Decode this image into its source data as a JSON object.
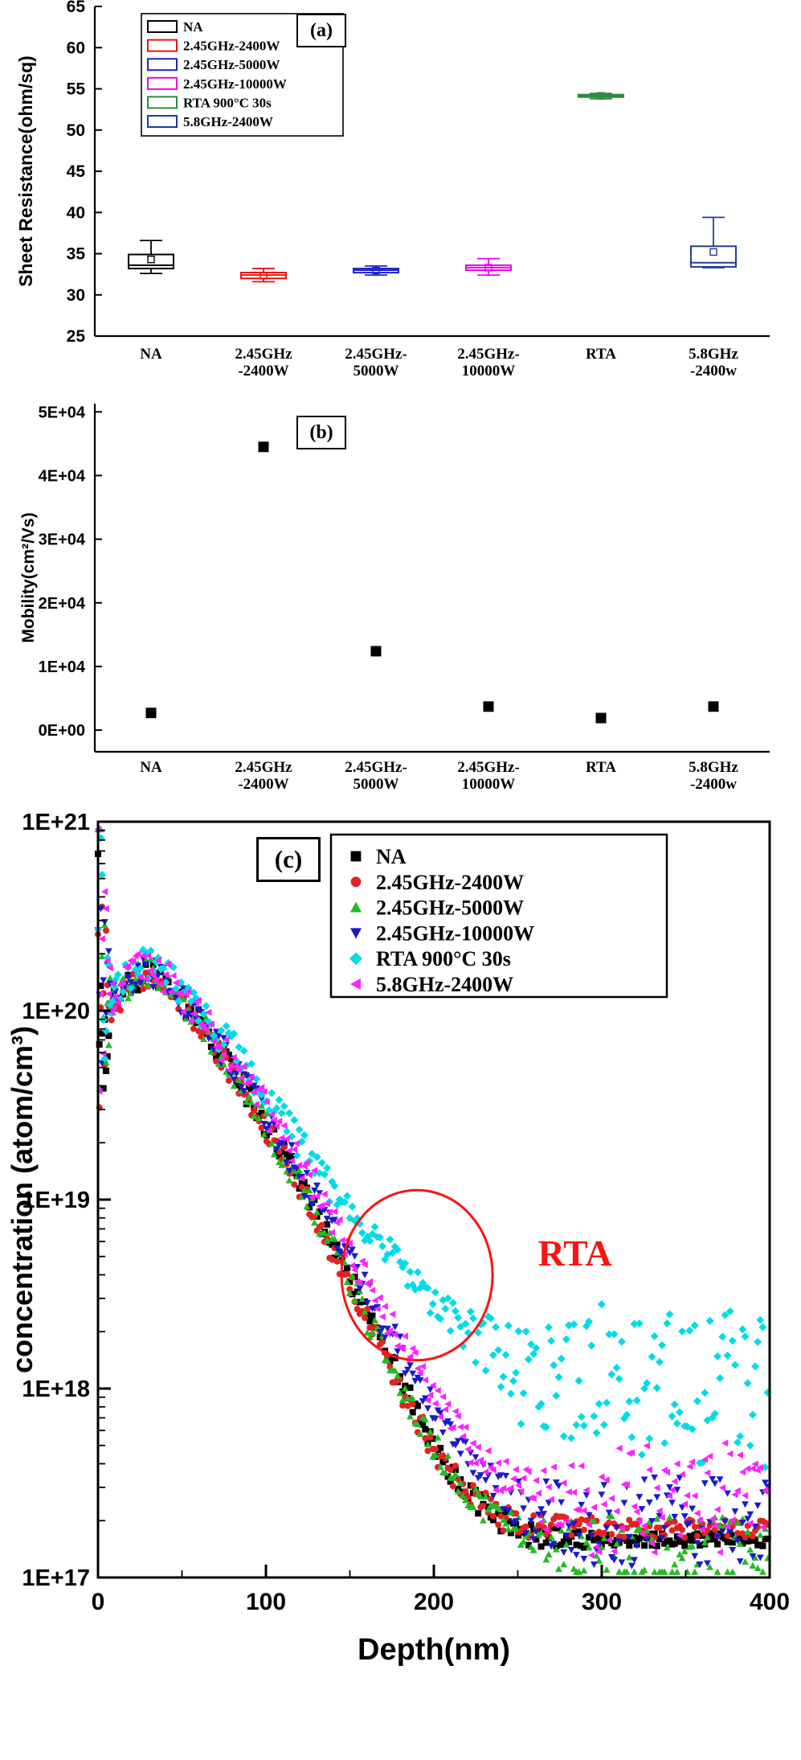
{
  "figure": {
    "background": "#ffffff",
    "panels": {
      "a": {
        "label": "(a)"
      },
      "b": {
        "label": "(b)"
      },
      "c": {
        "label": "(c)"
      }
    }
  },
  "chart_data": [
    {
      "id": "a",
      "type": "box",
      "panel_label": "(a)",
      "ylabel": "Sheet Resistance(ohm/sq)",
      "ylim": [
        25,
        65
      ],
      "yticks": [
        25,
        30,
        35,
        40,
        45,
        50,
        55,
        60,
        65
      ],
      "categories": [
        [
          "NA"
        ],
        [
          "2.45GHz",
          "-2400W"
        ],
        [
          "2.45GHz-",
          "5000W"
        ],
        [
          "2.45GHz-",
          "10000W"
        ],
        [
          "RTA"
        ],
        [
          "5.8GHz",
          "-2400w"
        ]
      ],
      "legend": [
        {
          "label": "NA",
          "color": "#000000"
        },
        {
          "label": "2.45GHz-2400W",
          "color": "#ee1111"
        },
        {
          "label": "2.45GHz-5000W",
          "color": "#2222cc"
        },
        {
          "label": "2.45GHz-10000W",
          "color": "#ee00ee"
        },
        {
          "label": "RTA  900°C 30s",
          "color": "#2e8b3a"
        },
        {
          "label": "5.8GHz-2400W",
          "color": "#1f3d99"
        }
      ],
      "boxes": [
        {
          "category": "NA",
          "color": "#000000",
          "low": 32.6,
          "q1": 33.2,
          "median": 33.6,
          "mean": 34.3,
          "q3": 34.9,
          "high": 36.6
        },
        {
          "category": "2.45GHz-2400W",
          "color": "#ee1111",
          "low": 31.6,
          "q1": 32.0,
          "median": 32.4,
          "mean": 32.35,
          "q3": 32.7,
          "high": 33.2
        },
        {
          "category": "2.45GHz-5000W",
          "color": "#2222cc",
          "low": 32.4,
          "q1": 32.7,
          "median": 33.0,
          "mean": 32.95,
          "q3": 33.2,
          "high": 33.5
        },
        {
          "category": "2.45GHz-10000W",
          "color": "#ee00ee",
          "low": 32.4,
          "q1": 33.0,
          "median": 33.3,
          "mean": 33.3,
          "q3": 33.6,
          "high": 34.4
        },
        {
          "category": "RTA",
          "color": "#2e8b3a",
          "low": 53.8,
          "q1": 54.0,
          "median": 54.15,
          "mean": 54.15,
          "q3": 54.3,
          "high": 54.45
        },
        {
          "category": "5.8GHz-2400w",
          "color": "#1f3d99",
          "low": 33.3,
          "q1": 33.4,
          "median": 33.9,
          "mean": 35.2,
          "q3": 35.9,
          "high": 39.4
        }
      ]
    },
    {
      "id": "b",
      "type": "scatter",
      "panel_label": "(b)",
      "ylabel": "Mobility(cm²/Vs)",
      "ylim": [
        -3400,
        51300
      ],
      "yticks": [
        {
          "value": 0,
          "label": "0E+00"
        },
        {
          "value": 10000,
          "label": "1E+04"
        },
        {
          "value": 20000,
          "label": "2E+04"
        },
        {
          "value": 30000,
          "label": "3E+04"
        },
        {
          "value": 40000,
          "label": "4E+04"
        },
        {
          "value": 50000,
          "label": "5E+04"
        }
      ],
      "categories": [
        [
          "NA"
        ],
        [
          "2.45GHz",
          "-2400W"
        ],
        [
          "2.45GHz-",
          "5000W"
        ],
        [
          "2.45GHz-",
          "10000W"
        ],
        [
          "RTA"
        ],
        [
          "5.8GHz",
          "-2400w"
        ]
      ],
      "values": [
        2700,
        44500,
        12400,
        3700,
        1900,
        3700
      ],
      "marker": {
        "shape": "square",
        "color": "#000000"
      }
    },
    {
      "id": "c",
      "type": "scatter-profile",
      "panel_label": "(c)",
      "xlabel": "Depth(nm)",
      "ylabel": "concentration (atom/cm³)",
      "xlim": [
        0,
        400
      ],
      "xticks": [
        0,
        100,
        200,
        300,
        400
      ],
      "xminor": [
        50,
        150,
        250,
        350
      ],
      "yscale": "log",
      "ylog_lim": [
        17,
        21
      ],
      "yticks": [
        {
          "exp": 17,
          "label": "1E+17"
        },
        {
          "exp": 18,
          "label": "1E+18"
        },
        {
          "exp": 19,
          "label": "1E+19"
        },
        {
          "exp": 20,
          "label": "1E+20"
        },
        {
          "exp": 21,
          "label": "1E+21"
        }
      ],
      "annotation": {
        "text": "RTA",
        "color": "#ff1111",
        "ellipse": {
          "cx_nm": 190,
          "cy_log": 18.6,
          "rx_nm": 45,
          "ry_dec": 0.45
        },
        "text_pos": {
          "x_nm": 262,
          "y_log": 18.72
        }
      },
      "series": [
        {
          "name": "NA",
          "color": "#000000",
          "marker": "square",
          "size": 4.0,
          "noise": 0.07,
          "surface_noise": 1.0,
          "tail_start": 250,
          "tail_noise": 0.035,
          "profile": [
            [
              0,
              20.6
            ],
            [
              2,
              20.15
            ],
            [
              5,
              20.0
            ],
            [
              10,
              20.05
            ],
            [
              20,
              20.15
            ],
            [
              30,
              20.2
            ],
            [
              40,
              20.15
            ],
            [
              50,
              20.05
            ],
            [
              60,
              19.95
            ],
            [
              80,
              19.7
            ],
            [
              100,
              19.4
            ],
            [
              120,
              19.1
            ],
            [
              140,
              18.75
            ],
            [
              160,
              18.4
            ],
            [
              180,
              18.05
            ],
            [
              200,
              17.7
            ],
            [
              220,
              17.45
            ],
            [
              240,
              17.3
            ],
            [
              260,
              17.22
            ],
            [
              280,
              17.2
            ],
            [
              400,
              17.2
            ]
          ]
        },
        {
          "name": "2.45GHz-2400W",
          "color": "#e32222",
          "marker": "circle",
          "size": 4.0,
          "noise": 0.07,
          "surface_noise": 1.0,
          "tail_start": 250,
          "tail_noise": 0.05,
          "profile": [
            [
              0,
              20.55
            ],
            [
              2,
              20.1
            ],
            [
              5,
              19.98
            ],
            [
              10,
              20.03
            ],
            [
              20,
              20.13
            ],
            [
              30,
              20.18
            ],
            [
              40,
              20.13
            ],
            [
              50,
              20.03
            ],
            [
              60,
              19.92
            ],
            [
              80,
              19.67
            ],
            [
              100,
              19.38
            ],
            [
              120,
              19.07
            ],
            [
              140,
              18.72
            ],
            [
              160,
              18.37
            ],
            [
              180,
              18.0
            ],
            [
              200,
              17.68
            ],
            [
              220,
              17.45
            ],
            [
              240,
              17.32
            ],
            [
              260,
              17.27
            ],
            [
              400,
              17.25
            ]
          ]
        },
        {
          "name": "2.45GHz-5000W",
          "color": "#22bb22",
          "marker": "triangle-up",
          "size": 4.4,
          "noise": 0.08,
          "surface_noise": 1.1,
          "tail_start": 240,
          "tail_noise": 0.18,
          "profile": [
            [
              0,
              20.65
            ],
            [
              2,
              20.2
            ],
            [
              5,
              20.02
            ],
            [
              10,
              20.06
            ],
            [
              20,
              20.16
            ],
            [
              30,
              20.21
            ],
            [
              40,
              20.16
            ],
            [
              50,
              20.06
            ],
            [
              60,
              19.94
            ],
            [
              80,
              19.69
            ],
            [
              100,
              19.39
            ],
            [
              120,
              19.08
            ],
            [
              140,
              18.73
            ],
            [
              160,
              18.38
            ],
            [
              180,
              18.02
            ],
            [
              200,
              17.7
            ],
            [
              220,
              17.45
            ],
            [
              240,
              17.3
            ],
            [
              260,
              17.2
            ],
            [
              280,
              17.15
            ],
            [
              400,
              17.15
            ]
          ]
        },
        {
          "name": "2.45GHz-10000W",
          "color": "#1a1acc",
          "marker": "triangle-down",
          "size": 4.4,
          "noise": 0.09,
          "surface_noise": 1.2,
          "tail_start": 235,
          "tail_noise": 0.25,
          "profile": [
            [
              0,
              20.7
            ],
            [
              2,
              20.25
            ],
            [
              5,
              20.05
            ],
            [
              10,
              20.08
            ],
            [
              20,
              20.17
            ],
            [
              30,
              20.22
            ],
            [
              40,
              20.17
            ],
            [
              50,
              20.07
            ],
            [
              60,
              19.96
            ],
            [
              80,
              19.72
            ],
            [
              100,
              19.44
            ],
            [
              120,
              19.15
            ],
            [
              140,
              18.85
            ],
            [
              160,
              18.5
            ],
            [
              180,
              18.2
            ],
            [
              200,
              17.9
            ],
            [
              220,
              17.62
            ],
            [
              240,
              17.45
            ],
            [
              260,
              17.35
            ],
            [
              280,
              17.3
            ],
            [
              400,
              17.3
            ]
          ]
        },
        {
          "name": "RTA  900°C 30s",
          "color": "#00dbe8",
          "marker": "diamond",
          "size": 5.0,
          "noise": 0.09,
          "surface_noise": 0.9,
          "tail_start": 215,
          "tail_noise": 0.4,
          "profile": [
            [
              0,
              20.5
            ],
            [
              2,
              20.1
            ],
            [
              5,
              20.03
            ],
            [
              10,
              20.1
            ],
            [
              20,
              20.2
            ],
            [
              30,
              20.25
            ],
            [
              40,
              20.2
            ],
            [
              50,
              20.1
            ],
            [
              60,
              20.0
            ],
            [
              80,
              19.8
            ],
            [
              100,
              19.55
            ],
            [
              120,
              19.3
            ],
            [
              140,
              19.05
            ],
            [
              160,
              18.85
            ],
            [
              180,
              18.65
            ],
            [
              200,
              18.45
            ],
            [
              220,
              18.3
            ],
            [
              240,
              18.15
            ],
            [
              260,
              18.05
            ],
            [
              280,
              18.0
            ],
            [
              300,
              18.05
            ],
            [
              320,
              18.0
            ],
            [
              340,
              18.05
            ],
            [
              360,
              18.0
            ],
            [
              380,
              18.05
            ],
            [
              400,
              17.95
            ]
          ]
        },
        {
          "name": "5.8GHz-2400W",
          "color": "#ff22ff",
          "marker": "triangle-left",
          "size": 4.4,
          "noise": 0.09,
          "surface_noise": 1.1,
          "tail_start": 235,
          "tail_noise": 0.3,
          "profile": [
            [
              0,
              20.62
            ],
            [
              2,
              20.2
            ],
            [
              5,
              20.05
            ],
            [
              10,
              20.1
            ],
            [
              20,
              20.2
            ],
            [
              30,
              20.24
            ],
            [
              40,
              20.18
            ],
            [
              50,
              20.08
            ],
            [
              60,
              19.97
            ],
            [
              80,
              19.74
            ],
            [
              100,
              19.47
            ],
            [
              120,
              19.2
            ],
            [
              140,
              18.9
            ],
            [
              160,
              18.55
            ],
            [
              180,
              18.25
            ],
            [
              200,
              17.95
            ],
            [
              220,
              17.7
            ],
            [
              240,
              17.52
            ],
            [
              260,
              17.42
            ],
            [
              280,
              17.38
            ],
            [
              360,
              17.42
            ],
            [
              400,
              17.45
            ]
          ]
        }
      ]
    }
  ]
}
